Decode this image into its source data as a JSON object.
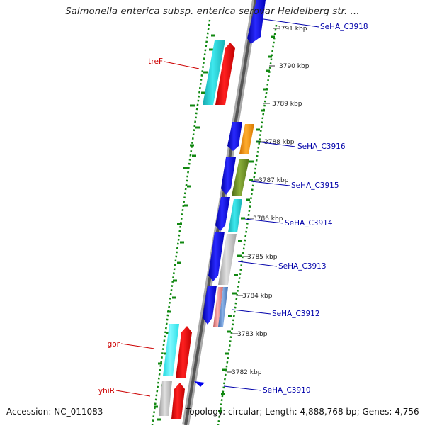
{
  "title": "Salmonella enterica subsp. enterica serovar Heidelberg str. ...",
  "accession": "Accession: NC_011083",
  "topology": "Topology: circular; Length: 4,888,768 bp; Genes: 4,756",
  "ruler": [
    "3791 kbp",
    "3790 kbp",
    "3789 kbp",
    "3788 kbp",
    "3787 kbp",
    "3786 kbp",
    "3785 kbp",
    "3784 kbp",
    "3783 kbp",
    "3782 kbp"
  ],
  "left_labels": [
    "treF",
    "gor",
    "yhiR"
  ],
  "right_labels": [
    "SeHA_C3918",
    "SeHA_C3916",
    "SeHA_C3915",
    "SeHA_C3914",
    "SeHA_C3913",
    "SeHA_C3912",
    "SeHA_C3910"
  ],
  "colors": {
    "cds_forward": "#0000ee",
    "gene": "#ff0000",
    "cyan": "#22c8cc",
    "orange": "#ff9900",
    "olive": "#6b8e23",
    "gray": "#bbbbbb",
    "pink": "#e88888",
    "steel": "#5b88c8",
    "left_label": "#cc0000",
    "right_label": "#0000aa"
  }
}
